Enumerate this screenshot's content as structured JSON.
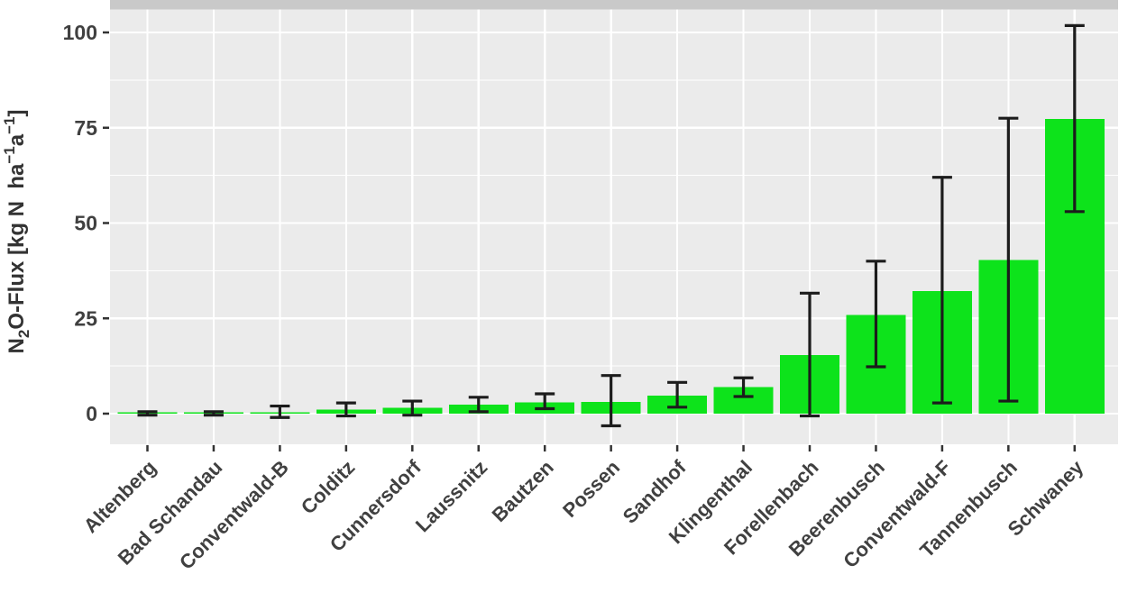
{
  "chart_data": {
    "type": "bar",
    "title": "",
    "xlabel": "",
    "ylabel": "N2O-Flux [kg N ha^-1 a^-1]",
    "ylabel_parts": [
      {
        "t": "N",
        "s": "n"
      },
      {
        "t": "2",
        "s": "sub"
      },
      {
        "t": "O-Flux [kg N  ha",
        "s": "n"
      },
      {
        "t": "−1",
        "s": "sup"
      },
      {
        "t": "a",
        "s": "n"
      },
      {
        "t": "−1",
        "s": "sup"
      },
      {
        "t": "]",
        "s": "n"
      }
    ],
    "categories": [
      "Altenberg",
      "Bad Schandau",
      "Conventwald-B",
      "Colditz",
      "Cunnersdorf",
      "Laussnitz",
      "Bautzen",
      "Possen",
      "Sandhof",
      "Klingenthal",
      "Forellenbach",
      "Beerenbusch",
      "Conventwald-F",
      "Tannenbusch",
      "Schwaney"
    ],
    "values": [
      0.1,
      0.1,
      0.3,
      1.1,
      1.5,
      2.4,
      2.9,
      3.1,
      4.7,
      7.0,
      15.4,
      25.9,
      32.1,
      40.3,
      77.3
    ],
    "error_low": [
      -0.4,
      -0.4,
      -1.0,
      -0.6,
      -0.4,
      0.5,
      1.3,
      -3.2,
      1.7,
      4.5,
      -0.6,
      12.3,
      2.8,
      3.3,
      53.0
    ],
    "error_high": [
      0.5,
      0.5,
      2.0,
      2.8,
      3.3,
      4.3,
      5.2,
      10.0,
      8.2,
      9.4,
      31.6,
      40.0,
      62.0,
      77.5,
      101.8
    ],
    "yticks": [
      0,
      25,
      50,
      75,
      100
    ],
    "yticks_minor": [
      12.5,
      37.5,
      62.5,
      87.5
    ],
    "ylim": [
      -8.1,
      106.0
    ],
    "grid": true,
    "legend": false,
    "x_labels_rotation_deg": -45,
    "colors": {
      "bar_fill": "#0de31b",
      "panel_bg": "#ebebeb",
      "strip_bg": "#c9c9c9",
      "grid": "#ffffff",
      "errorbar": "#1c1c1c",
      "tick": "#333333",
      "axis_text": "#404040",
      "axis_title": "#333333",
      "figure_bg": "#ffffff"
    }
  }
}
